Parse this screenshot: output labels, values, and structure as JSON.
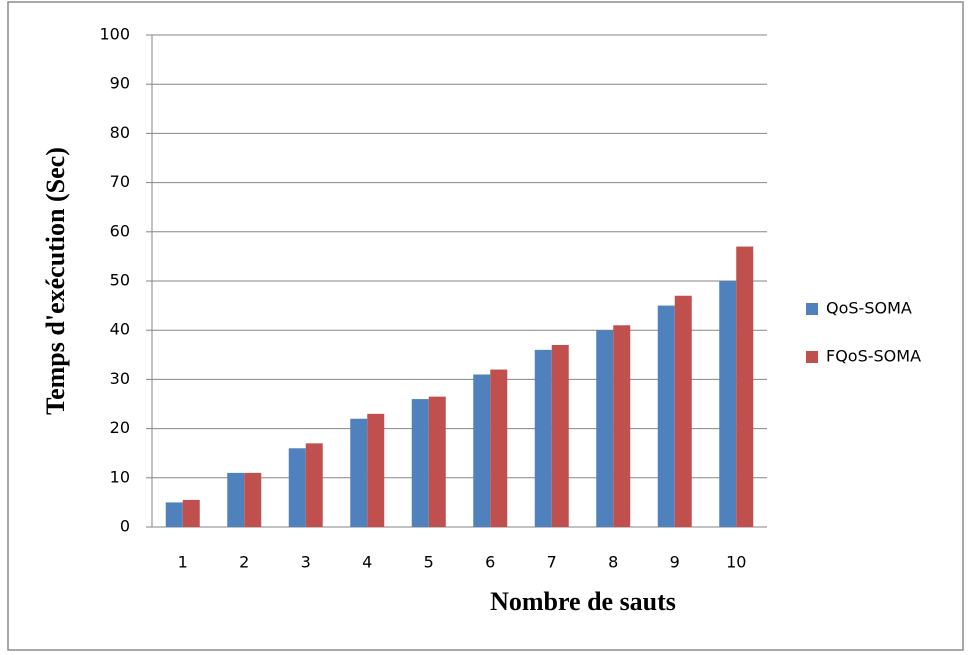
{
  "chart_data": {
    "type": "bar",
    "xlabel": "Nombre de sauts",
    "ylabel": "Temps d'exécution  (Sec)",
    "categories": [
      "1",
      "2",
      "3",
      "4",
      "5",
      "6",
      "7",
      "8",
      "9",
      "10"
    ],
    "series": [
      {
        "name": "QoS-SOMA",
        "color": "#4f81bd",
        "values": [
          5,
          11,
          16,
          22,
          26,
          31,
          36,
          40,
          45,
          50
        ]
      },
      {
        "name": "FQoS-SOMA",
        "color": "#c0504d",
        "values": [
          5.5,
          11,
          17,
          23,
          26.5,
          32,
          37,
          41,
          47,
          57
        ]
      }
    ],
    "ylim": [
      0,
      100
    ],
    "yticks": [
      0,
      10,
      20,
      30,
      40,
      50,
      60,
      70,
      80,
      90,
      100
    ],
    "grid": true,
    "legend": "right"
  }
}
